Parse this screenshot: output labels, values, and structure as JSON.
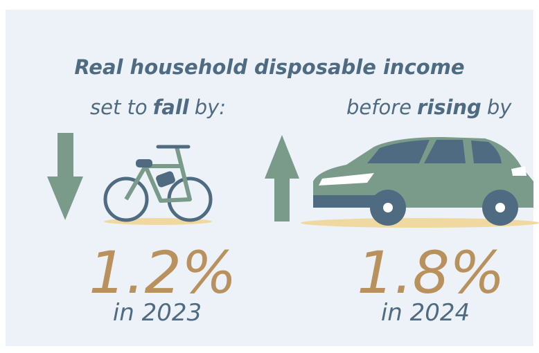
{
  "header": {
    "title": "Real household disposable income"
  },
  "left": {
    "subtitle": [
      "set to",
      "fall",
      "by:"
    ],
    "figure": "1.2%",
    "period": "in 2023"
  },
  "right": {
    "subtitle": [
      "before",
      "rising",
      "by"
    ],
    "figure": "1.8%",
    "period": "in 2024"
  }
}
